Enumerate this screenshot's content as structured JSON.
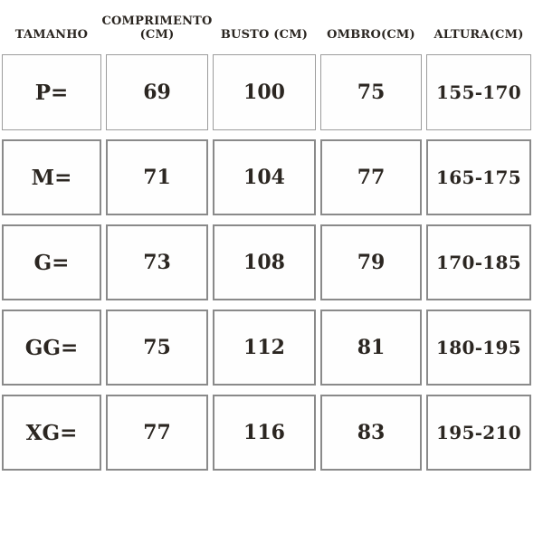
{
  "page": {
    "background_color": "#ffffff",
    "text_color": "#2b2621",
    "border_color": "#8a8a8a"
  },
  "table": {
    "columns": [
      {
        "label": "TAMANHO"
      },
      {
        "label": "COMPRIMENTO\n(CM)"
      },
      {
        "label": "BUSTO (CM)"
      },
      {
        "label": "OMBRO(CM)"
      },
      {
        "label": "ALTURA(CM)"
      }
    ],
    "rows": [
      [
        "P=",
        "69",
        "100",
        "75",
        "155-170"
      ],
      [
        "M=",
        "71",
        "104",
        "77",
        "165-175"
      ],
      [
        "G=",
        "73",
        "108",
        "79",
        "170-185"
      ],
      [
        "GG=",
        "75",
        "112",
        "81",
        "180-195"
      ],
      [
        "XG=",
        "77",
        "116",
        "83",
        "195-210"
      ]
    ]
  },
  "chart_data": {
    "type": "table",
    "title": "",
    "columns": [
      "TAMANHO",
      "COMPRIMENTO (CM)",
      "BUSTO (CM)",
      "OMBRO(CM)",
      "ALTURA(CM)"
    ],
    "rows": [
      {
        "tamanho": "P=",
        "comprimento_cm": 69,
        "busto_cm": 100,
        "ombro_cm": 75,
        "altura_cm": "155-170"
      },
      {
        "tamanho": "M=",
        "comprimento_cm": 71,
        "busto_cm": 104,
        "ombro_cm": 77,
        "altura_cm": "165-175"
      },
      {
        "tamanho": "G=",
        "comprimento_cm": 73,
        "busto_cm": 108,
        "ombro_cm": 79,
        "altura_cm": "170-185"
      },
      {
        "tamanho": "GG=",
        "comprimento_cm": 75,
        "busto_cm": 112,
        "ombro_cm": 81,
        "altura_cm": "180-195"
      },
      {
        "tamanho": "XG=",
        "comprimento_cm": 77,
        "busto_cm": 116,
        "ombro_cm": 83,
        "altura_cm": "195-210"
      }
    ]
  }
}
